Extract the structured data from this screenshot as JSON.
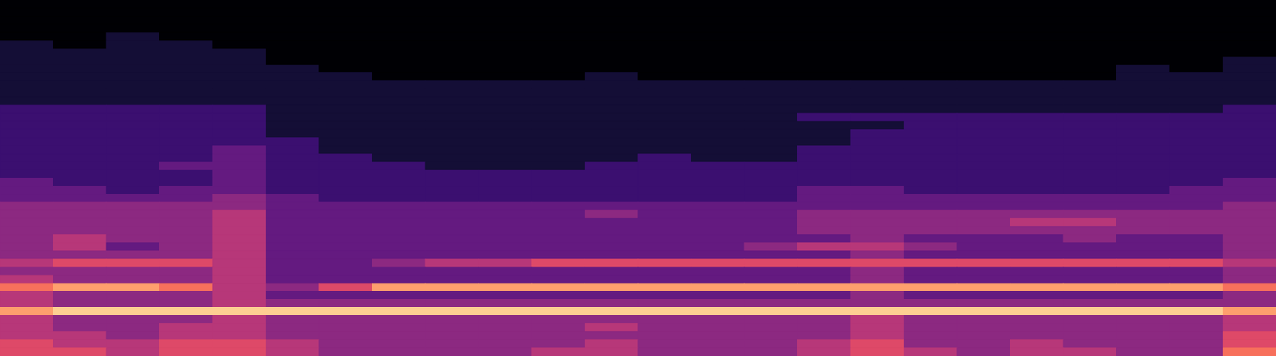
{
  "chart_data": {
    "type": "heatmap",
    "color": "magma",
    "tick_labels": false,
    "cells": [
      [
        0,
        0,
        0,
        0,
        0,
        0,
        0,
        0,
        0,
        0,
        0,
        0,
        0,
        0,
        0,
        0,
        0,
        0,
        0,
        0,
        0,
        0,
        0,
        0
      ],
      [
        0,
        0,
        0,
        0,
        0,
        0,
        0,
        0,
        0,
        0,
        0,
        0,
        0,
        0,
        0,
        0,
        0,
        0,
        0,
        0,
        0,
        0,
        0,
        0
      ],
      [
        0,
        0,
        0,
        0,
        0,
        0,
        0,
        0,
        0,
        0,
        0,
        0,
        0,
        0,
        0,
        0,
        0,
        0,
        0,
        0,
        0,
        0,
        0,
        0
      ],
      [
        0,
        0,
        0,
        0,
        0,
        0,
        0,
        0,
        0,
        0,
        0,
        0,
        0,
        0,
        0,
        0,
        0,
        0,
        0,
        0,
        0,
        0,
        0,
        0
      ],
      [
        0,
        0,
        1,
        0,
        0,
        0,
        0,
        0,
        0,
        0,
        0,
        0,
        0,
        0,
        0,
        0,
        0,
        0,
        0,
        0,
        0,
        0,
        0,
        0
      ],
      [
        1,
        0,
        1,
        1,
        0,
        0,
        0,
        0,
        0,
        0,
        0,
        0,
        0,
        0,
        0,
        0,
        0,
        0,
        0,
        0,
        0,
        0,
        0,
        0
      ],
      [
        1,
        1,
        1,
        1,
        1,
        0,
        0,
        0,
        0,
        0,
        0,
        0,
        0,
        0,
        0,
        0,
        0,
        0,
        0,
        0,
        0,
        0,
        0,
        0
      ],
      [
        1,
        1,
        1,
        1,
        1,
        0,
        0,
        0,
        0,
        0,
        0,
        0,
        0,
        0,
        0,
        0,
        0,
        0,
        0,
        0,
        0,
        0,
        0,
        1
      ],
      [
        1,
        1,
        1,
        1,
        1,
        1,
        0,
        0,
        0,
        0,
        0,
        0,
        0,
        0,
        0,
        0,
        0,
        0,
        0,
        0,
        0,
        1,
        0,
        1
      ],
      [
        1,
        1,
        1,
        1,
        1,
        1,
        1,
        0,
        0,
        0,
        0,
        1,
        0,
        0,
        0,
        0,
        0,
        0,
        0,
        0,
        0,
        1,
        1,
        1
      ],
      [
        1,
        1,
        1,
        1,
        1,
        1,
        1,
        1,
        1,
        1,
        1,
        1,
        1,
        1,
        1,
        1,
        1,
        1,
        1,
        1,
        1,
        1,
        1,
        1
      ],
      [
        1,
        1,
        1,
        1,
        1,
        1,
        1,
        1,
        1,
        1,
        1,
        1,
        1,
        1,
        1,
        1,
        1,
        1,
        1,
        1,
        1,
        1,
        1,
        1
      ],
      [
        1,
        1,
        1,
        1,
        1,
        1,
        1,
        1,
        1,
        1,
        1,
        1,
        1,
        1,
        1,
        1,
        1,
        1,
        1,
        1,
        1,
        1,
        1,
        1
      ],
      [
        2,
        2,
        2,
        2,
        2,
        1,
        1,
        1,
        1,
        1,
        1,
        1,
        1,
        1,
        1,
        1,
        1,
        1,
        1,
        1,
        1,
        1,
        1,
        2
      ],
      [
        2,
        2,
        2,
        2,
        2,
        1,
        1,
        1,
        1,
        1,
        1,
        1,
        1,
        1,
        1,
        2,
        2,
        2,
        2,
        2,
        2,
        2,
        2,
        2
      ],
      [
        2,
        2,
        2,
        2,
        2,
        1,
        1,
        1,
        1,
        1,
        1,
        1,
        1,
        1,
        1,
        1,
        1,
        2,
        2,
        2,
        2,
        2,
        2,
        2
      ],
      [
        2,
        2,
        2,
        2,
        2,
        1,
        1,
        1,
        1,
        1,
        1,
        1,
        1,
        1,
        1,
        1,
        2,
        2,
        2,
        2,
        2,
        2,
        2,
        2
      ],
      [
        2,
        2,
        2,
        2,
        2,
        2,
        1,
        1,
        1,
        1,
        1,
        1,
        1,
        1,
        1,
        1,
        2,
        2,
        2,
        2,
        2,
        2,
        2,
        2
      ],
      [
        2,
        2,
        2,
        2,
        3,
        2,
        1,
        1,
        1,
        1,
        1,
        1,
        1,
        1,
        1,
        2,
        2,
        2,
        2,
        2,
        2,
        2,
        2,
        2
      ],
      [
        2,
        2,
        2,
        2,
        3,
        2,
        2,
        1,
        1,
        1,
        1,
        1,
        2,
        1,
        1,
        2,
        2,
        2,
        2,
        2,
        2,
        2,
        2,
        2
      ],
      [
        2,
        2,
        2,
        3,
        3,
        2,
        2,
        2,
        1,
        1,
        1,
        2,
        2,
        2,
        2,
        2,
        2,
        2,
        2,
        2,
        2,
        2,
        2,
        2
      ],
      [
        2,
        2,
        2,
        2,
        3,
        2,
        2,
        2,
        2,
        2,
        2,
        2,
        2,
        2,
        2,
        2,
        2,
        2,
        2,
        2,
        2,
        2,
        2,
        2
      ],
      [
        3,
        2,
        2,
        2,
        3,
        2,
        2,
        2,
        2,
        2,
        2,
        2,
        2,
        2,
        2,
        2,
        2,
        2,
        2,
        2,
        2,
        2,
        2,
        3
      ],
      [
        3,
        3,
        2,
        3,
        3,
        2,
        2,
        2,
        2,
        2,
        2,
        2,
        2,
        2,
        2,
        3,
        3,
        2,
        2,
        2,
        2,
        2,
        3,
        3
      ],
      [
        3,
        3,
        3,
        3,
        4,
        3,
        2,
        2,
        2,
        2,
        2,
        2,
        2,
        2,
        2,
        3,
        3,
        3,
        3,
        3,
        3,
        3,
        3,
        3
      ],
      [
        4,
        4,
        4,
        4,
        4,
        3,
        3,
        3,
        3,
        3,
        3,
        3,
        3,
        3,
        3,
        3,
        3,
        3,
        3,
        3,
        3,
        3,
        3,
        4
      ],
      [
        4,
        4,
        4,
        4,
        5,
        3,
        3,
        3,
        3,
        3,
        3,
        4,
        3,
        3,
        3,
        4,
        4,
        4,
        4,
        4,
        4,
        4,
        4,
        4
      ],
      [
        4,
        4,
        4,
        4,
        5,
        3,
        3,
        3,
        3,
        3,
        3,
        3,
        3,
        3,
        3,
        4,
        4,
        4,
        4,
        5,
        5,
        4,
        4,
        4
      ],
      [
        4,
        4,
        4,
        4,
        5,
        3,
        3,
        3,
        3,
        3,
        3,
        3,
        3,
        3,
        3,
        4,
        4,
        4,
        4,
        4,
        4,
        4,
        4,
        4
      ],
      [
        4,
        5,
        4,
        4,
        5,
        3,
        3,
        3,
        3,
        3,
        3,
        3,
        3,
        3,
        3,
        3,
        4,
        3,
        3,
        3,
        4,
        3,
        3,
        4
      ],
      [
        4,
        5,
        3,
        4,
        5,
        3,
        3,
        3,
        3,
        3,
        3,
        3,
        3,
        3,
        4,
        5,
        5,
        4,
        3,
        3,
        3,
        3,
        3,
        4
      ],
      [
        4,
        4,
        4,
        4,
        5,
        3,
        3,
        3,
        3,
        3,
        3,
        3,
        3,
        3,
        3,
        3,
        4,
        3,
        3,
        3,
        3,
        3,
        3,
        4
      ],
      [
        5,
        6,
        6,
        6,
        5,
        3,
        3,
        4,
        5,
        5,
        6,
        6,
        6,
        6,
        6,
        6,
        6,
        6,
        6,
        6,
        6,
        6,
        6,
        5
      ],
      [
        4,
        4,
        4,
        4,
        5,
        3,
        3,
        3,
        3,
        3,
        3,
        3,
        3,
        3,
        3,
        3,
        4,
        3,
        3,
        3,
        3,
        3,
        3,
        4
      ],
      [
        5,
        4,
        4,
        4,
        5,
        3,
        3,
        3,
        3,
        3,
        3,
        3,
        3,
        3,
        3,
        3,
        4,
        3,
        3,
        3,
        3,
        3,
        3,
        4
      ],
      [
        7,
        8,
        8,
        7,
        5,
        4,
        6,
        8,
        8,
        8,
        8,
        8,
        8,
        8,
        8,
        8,
        8,
        8,
        8,
        8,
        8,
        8,
        8,
        7
      ],
      [
        5,
        4,
        4,
        4,
        5,
        3,
        3,
        3,
        3,
        3,
        3,
        3,
        3,
        3,
        3,
        3,
        4,
        3,
        3,
        3,
        3,
        3,
        3,
        4
      ],
      [
        5,
        4,
        4,
        4,
        5,
        4,
        4,
        4,
        4,
        4,
        4,
        4,
        4,
        4,
        4,
        4,
        4,
        4,
        4,
        4,
        4,
        4,
        4,
        4
      ],
      [
        8,
        9,
        9,
        9,
        9,
        9,
        9,
        9,
        9,
        9,
        9,
        9,
        9,
        9,
        9,
        9,
        9,
        9,
        9,
        9,
        9,
        9,
        9,
        8
      ],
      [
        5,
        4,
        4,
        4,
        5,
        4,
        4,
        4,
        4,
        4,
        4,
        4,
        4,
        4,
        4,
        4,
        5,
        4,
        4,
        4,
        4,
        4,
        4,
        5
      ],
      [
        5,
        4,
        4,
        5,
        5,
        4,
        4,
        4,
        4,
        4,
        4,
        5,
        4,
        4,
        4,
        4,
        5,
        4,
        4,
        4,
        4,
        4,
        4,
        5
      ],
      [
        5,
        5,
        4,
        5,
        5,
        4,
        4,
        4,
        4,
        4,
        4,
        4,
        4,
        4,
        4,
        4,
        5,
        4,
        4,
        4,
        4,
        4,
        4,
        6
      ],
      [
        6,
        5,
        5,
        6,
        6,
        5,
        4,
        4,
        4,
        4,
        4,
        5,
        4,
        4,
        4,
        5,
        6,
        4,
        4,
        5,
        4,
        4,
        4,
        6
      ],
      [
        6,
        6,
        5,
        6,
        6,
        5,
        4,
        4,
        4,
        4,
        5,
        5,
        4,
        4,
        4,
        5,
        6,
        5,
        4,
        5,
        5,
        4,
        4,
        7
      ]
    ]
  }
}
